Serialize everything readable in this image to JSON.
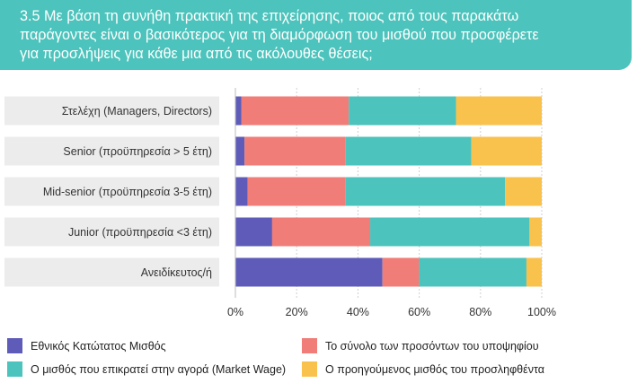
{
  "title": {
    "lines": [
      "3.5 Με βάση τη συνήθη πρακτική της επιχείρησης, ποιος από τους παρακάτω",
      "παράγοντες είναι ο βασικότερος για τη διαμόρφωση του μισθού που προσφέρετε",
      "για προσλήψεις για κάθε μια από τις ακόλουθες θέσεις;"
    ]
  },
  "chart_data": {
    "type": "bar",
    "orientation": "horizontal",
    "stacked": true,
    "title": "3.5 Με βάση τη συνήθη πρακτική της επιχείρησης, ποιος από τους παρακάτω παράγοντες είναι ο βασικότερος για τη διαμόρφωση του μισθού που προσφέρετε για προσλήψεις για κάθε μια από τις ακόλουθες θέσεις;",
    "categories": [
      "Στελέχη (Managers, Directors)",
      "Senior (προϋπηρεσία > 5 έτη)",
      "Mid-senior (προϋπηρεσία 3-5 έτη)",
      "Junior (προϋπηρεσία <3 έτη)",
      "Ανειδίκευτος/ή"
    ],
    "series": [
      {
        "name": "Εθνικός Κατώτατος Μισθός",
        "color": "#5e5cb8",
        "values": [
          2,
          3,
          4,
          12,
          48
        ]
      },
      {
        "name": "Το σύνολο των προσόντων του υποψηφίου",
        "color": "#f07d77",
        "values": [
          35,
          33,
          32,
          32,
          12
        ]
      },
      {
        "name": "Ο μισθός που επικρατεί στην αγορά (Market Wage)",
        "color": "#4cc3bc",
        "values": [
          35,
          41,
          52,
          52,
          35
        ]
      },
      {
        "name": "Ο προηγούμενος μισθός του προσληφθέντα",
        "color": "#f9c24d",
        "values": [
          28,
          23,
          12,
          4,
          5
        ]
      }
    ],
    "xlim": [
      0,
      100
    ],
    "x_ticks": [
      "0%",
      "20%",
      "40%",
      "60%",
      "80%",
      "100%"
    ],
    "grid": true,
    "legend_position": "bottom"
  }
}
